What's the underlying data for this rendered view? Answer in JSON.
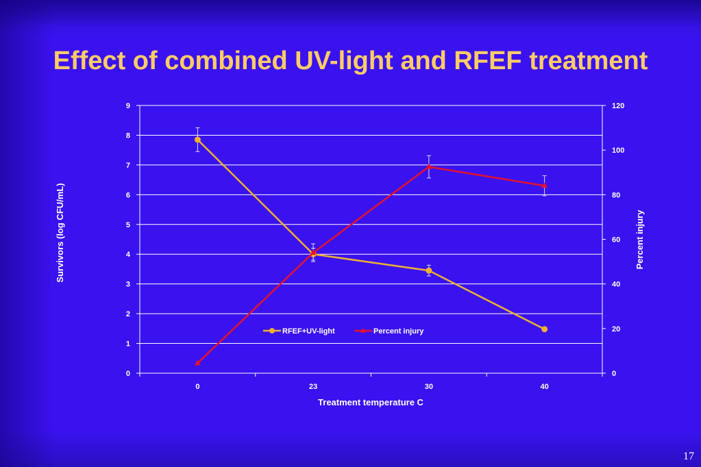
{
  "slide": {
    "title": "Effect of combined UV-light and RFEF treatment",
    "page_number": "17"
  },
  "chart_data": {
    "type": "line",
    "categories": [
      "0",
      "23",
      "30",
      "40"
    ],
    "xlabel": "Treatment temperature C",
    "ylabel": "Survivors (log CFU/mL)",
    "y2label": "Percent injury",
    "ylim": [
      0,
      9
    ],
    "y2lim": [
      0,
      120
    ],
    "yticks": [
      "0",
      "1",
      "2",
      "3",
      "4",
      "5",
      "6",
      "7",
      "8",
      "9"
    ],
    "y2ticks": [
      "0",
      "20",
      "40",
      "60",
      "80",
      "100",
      "120"
    ],
    "grid": true,
    "legend_position": "center-bottom",
    "series": [
      {
        "name": "RFEF+UV-light",
        "axis": "left",
        "marker": "circle",
        "color": "#f0b030",
        "values": [
          7.85,
          4.0,
          3.45,
          1.48
        ],
        "errors": [
          0.4,
          0.2,
          0.18,
          null
        ]
      },
      {
        "name": "Percent injury",
        "axis": "right",
        "marker": "triangle",
        "color": "#e8102a",
        "values": [
          4.5,
          54,
          92.5,
          84
        ],
        "errors": [
          null,
          4,
          5,
          4.5
        ]
      }
    ]
  }
}
